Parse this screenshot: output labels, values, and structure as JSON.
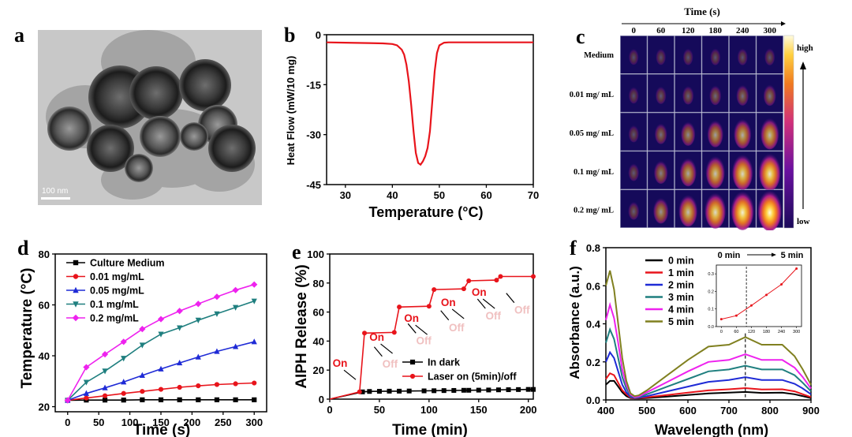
{
  "panels": {
    "a": "a",
    "b": "b",
    "c": "c",
    "d": "d",
    "e": "e",
    "f": "f"
  },
  "tem": {
    "scale_label": "100 nm"
  },
  "thermal": {
    "time_title": "Time (s)",
    "times": [
      "0",
      "60",
      "120",
      "180",
      "240",
      "300"
    ],
    "rows": [
      {
        "label": "Medium",
        "levels": [
          0.02,
          0.03,
          0.04,
          0.05,
          0.05,
          0.06
        ]
      },
      {
        "label": "0.01 mg/ mL",
        "levels": [
          0.04,
          0.08,
          0.12,
          0.16,
          0.2,
          0.22
        ]
      },
      {
        "label": "0.05 mg/ mL",
        "levels": [
          0.06,
          0.2,
          0.34,
          0.45,
          0.55,
          0.62
        ]
      },
      {
        "label": "0.1 mg/ mL",
        "levels": [
          0.08,
          0.3,
          0.5,
          0.66,
          0.78,
          0.86
        ]
      },
      {
        "label": "0.2 mg/ mL",
        "levels": [
          0.1,
          0.4,
          0.64,
          0.8,
          0.92,
          1.0
        ]
      }
    ],
    "colorbar_high": "high",
    "colorbar_low": "low"
  },
  "chart_data": [
    {
      "panel": "b",
      "type": "line",
      "xlabel": "Temperature (°C)",
      "ylabel": "Heat Flow (mW/10 mg)",
      "xlim": [
        26,
        70
      ],
      "ylim": [
        -45,
        0
      ],
      "xticks": [
        "30",
        "40",
        "50",
        "60",
        "70"
      ],
      "yticks": [
        "0",
        "-15",
        "-30",
        "-45"
      ],
      "color": "#e8141b",
      "series": [
        {
          "x": [
            26,
            30,
            35,
            38,
            40,
            41,
            42,
            42.5,
            43,
            43.5,
            44,
            44.5,
            45,
            45.5,
            46,
            46.5,
            47,
            47.5,
            48,
            48.5,
            49,
            49.5,
            50,
            51,
            52,
            55,
            60,
            65,
            70
          ],
          "y": [
            -2.3,
            -2.4,
            -2.5,
            -2.6,
            -2.8,
            -3.2,
            -4.5,
            -6,
            -9,
            -14,
            -21,
            -29,
            -35.5,
            -38.5,
            -39,
            -38,
            -36.5,
            -34,
            -29,
            -20,
            -11,
            -5.5,
            -3.2,
            -2.4,
            -2.3,
            -2.3,
            -2.3,
            -2.3,
            -2.3
          ]
        }
      ]
    },
    {
      "panel": "d",
      "type": "line",
      "xlabel": "Time (s)",
      "ylabel": "Temperature (°C)",
      "xlim": [
        -20,
        320
      ],
      "ylim": [
        18,
        80
      ],
      "xticks": [
        "0",
        "50",
        "100",
        "150",
        "200",
        "250",
        "300"
      ],
      "yticks": [
        "20",
        "40",
        "60",
        "80"
      ],
      "x": [
        0,
        30,
        60,
        90,
        120,
        150,
        180,
        210,
        240,
        270,
        300
      ],
      "series": [
        {
          "name": "Culture Medium",
          "color": "#000000",
          "marker": "square",
          "values": [
            22.5,
            22.6,
            22.6,
            22.6,
            22.7,
            22.7,
            22.7,
            22.7,
            22.7,
            22.7,
            22.7
          ]
        },
        {
          "name": "0.01 mg/mL",
          "color": "#e8141b",
          "marker": "circle",
          "values": [
            22.5,
            23.4,
            24.3,
            25.2,
            26.0,
            26.8,
            27.6,
            28.2,
            28.7,
            29.0,
            29.3
          ]
        },
        {
          "name": "0.05 mg/mL",
          "color": "#1f2bd6",
          "marker": "triangle",
          "values": [
            22.5,
            25.2,
            27.4,
            29.7,
            32.3,
            34.8,
            37.2,
            39.5,
            41.7,
            43.6,
            45.5
          ]
        },
        {
          "name": "0.1 mg/mL",
          "color": "#1f7f7f",
          "marker": "triangle-down",
          "values": [
            22.5,
            29.6,
            34.0,
            39.0,
            44.2,
            48.5,
            51.0,
            54.0,
            56.5,
            59.0,
            61.5
          ]
        },
        {
          "name": "0.2 mg/mL",
          "color": "#ee22ee",
          "marker": "diamond",
          "values": [
            22.5,
            35.5,
            40.6,
            45.5,
            50.5,
            54.4,
            57.6,
            60.4,
            63.2,
            65.8,
            68.0
          ]
        }
      ]
    },
    {
      "panel": "e",
      "type": "line",
      "xlabel": "Time (min)",
      "ylabel": "AIPH Release (%)",
      "xlim": [
        0,
        205
      ],
      "ylim": [
        0,
        100
      ],
      "xticks": [
        "0",
        "50",
        "100",
        "150",
        "200"
      ],
      "yticks": [
        "0",
        "20",
        "40",
        "60",
        "80",
        "100"
      ],
      "series": [
        {
          "name": "In dark",
          "color": "#000000",
          "marker": "square",
          "x": [
            0,
            33,
            40,
            50,
            60,
            70,
            80,
            95,
            105,
            115,
            125,
            135,
            140,
            150,
            160,
            170,
            180,
            190,
            200,
            205
          ],
          "y": [
            0,
            5,
            5.3,
            5.4,
            5.5,
            5.5,
            5.6,
            5.7,
            5.8,
            5.9,
            6,
            6.1,
            6.1,
            6.2,
            6.3,
            6.4,
            6.5,
            6.6,
            6.7,
            6.7
          ]
        },
        {
          "name": "Laser on (5min)/off",
          "color": "#e8141b",
          "marker": "circle",
          "x": [
            0,
            30,
            35,
            65,
            70,
            100,
            105,
            135,
            140,
            168,
            172,
            205
          ],
          "y": [
            0,
            5,
            45.5,
            46,
            63.5,
            64,
            75.5,
            76,
            81.5,
            82,
            84.5,
            84.5
          ]
        }
      ],
      "annotations": [
        "On",
        "Off",
        "On",
        "Off",
        "On",
        "Off",
        "On",
        "Off",
        "On",
        "Off"
      ]
    },
    {
      "panel": "f",
      "type": "line",
      "xlabel": "Wavelength (nm)",
      "ylabel": "Absorbance (a.u.)",
      "xlim": [
        400,
        900
      ],
      "ylim": [
        0,
        0.8
      ],
      "xticks": [
        "400",
        "500",
        "600",
        "700",
        "800",
        "900"
      ],
      "yticks": [
        "0.0",
        "0.2",
        "0.4",
        "0.6",
        "0.8"
      ],
      "x": [
        400,
        410,
        420,
        430,
        440,
        450,
        460,
        470,
        480,
        500,
        550,
        600,
        650,
        700,
        740,
        780,
        830,
        860,
        880,
        900
      ],
      "series": [
        {
          "name": "0 min",
          "color": "#000000",
          "values": [
            0.08,
            0.1,
            0.1,
            0.07,
            0.04,
            0.02,
            0.01,
            0.008,
            0.008,
            0.01,
            0.018,
            0.026,
            0.034,
            0.038,
            0.042,
            0.037,
            0.038,
            0.03,
            0.02,
            0.01
          ]
        },
        {
          "name": "1 min",
          "color": "#e8141b",
          "values": [
            0.11,
            0.14,
            0.13,
            0.09,
            0.05,
            0.03,
            0.012,
            0.008,
            0.01,
            0.014,
            0.026,
            0.038,
            0.05,
            0.056,
            0.062,
            0.055,
            0.056,
            0.045,
            0.03,
            0.015
          ]
        },
        {
          "name": "2 min",
          "color": "#1f2bd6",
          "values": [
            0.2,
            0.25,
            0.22,
            0.15,
            0.08,
            0.04,
            0.016,
            0.01,
            0.012,
            0.02,
            0.045,
            0.07,
            0.095,
            0.105,
            0.12,
            0.105,
            0.105,
            0.085,
            0.06,
            0.03
          ]
        },
        {
          "name": "3 min",
          "color": "#1f7f7f",
          "values": [
            0.3,
            0.37,
            0.32,
            0.22,
            0.12,
            0.06,
            0.022,
            0.012,
            0.015,
            0.03,
            0.07,
            0.11,
            0.15,
            0.16,
            0.18,
            0.16,
            0.16,
            0.13,
            0.09,
            0.045
          ]
        },
        {
          "name": "4 min",
          "color": "#ee22ee",
          "values": [
            0.42,
            0.5,
            0.43,
            0.3,
            0.16,
            0.08,
            0.028,
            0.015,
            0.018,
            0.04,
            0.095,
            0.15,
            0.2,
            0.21,
            0.24,
            0.21,
            0.21,
            0.17,
            0.12,
            0.06
          ]
        },
        {
          "name": "5 min",
          "color": "#808020",
          "values": [
            0.6,
            0.68,
            0.58,
            0.4,
            0.22,
            0.1,
            0.035,
            0.02,
            0.024,
            0.05,
            0.13,
            0.21,
            0.28,
            0.29,
            0.33,
            0.29,
            0.29,
            0.23,
            0.16,
            0.08
          ]
        }
      ],
      "marker_line_x": 740,
      "inset": {
        "title_start": "0 min",
        "title_end": "5 min",
        "xticks": [
          "0",
          "60",
          "120",
          "180",
          "240",
          "300"
        ],
        "yticks": [
          "0.0",
          "0.1",
          "0.2",
          "0.3"
        ],
        "x": [
          0,
          60,
          120,
          180,
          240,
          300
        ],
        "values": [
          0.042,
          0.062,
          0.12,
          0.18,
          0.24,
          0.33
        ],
        "xlim": [
          -20,
          320
        ],
        "ylim": [
          0,
          0.35
        ],
        "marker_line_x": 100
      }
    }
  ]
}
